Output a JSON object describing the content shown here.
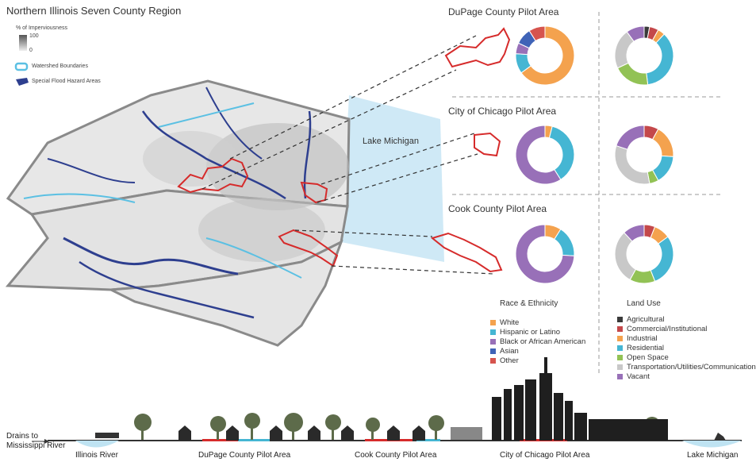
{
  "title": "Northern Illinois Seven County Region",
  "imperviousness": {
    "label": "% of Imperviousness",
    "max": "100",
    "min": "0"
  },
  "map_legend": {
    "watershed": "Watershed Boundaries",
    "flood": "Special Flood Hazard Areas"
  },
  "map_labels": {
    "lake": "Lake Michigan"
  },
  "pilots": [
    {
      "name": "DuPage County Pilot Area",
      "race": [
        0.65,
        0.11,
        0.06,
        0.09,
        0.09
      ],
      "landuse": [
        0.03,
        0.05,
        0.04,
        0.36,
        0.2,
        0.22,
        0.1
      ]
    },
    {
      "name": "City of Chicago Pilot Area",
      "race": [
        0.04,
        0.37,
        0.59,
        0.0,
        0.0
      ],
      "landuse": [
        0.0,
        0.08,
        0.18,
        0.16,
        0.05,
        0.33,
        0.2
      ]
    },
    {
      "name": "Cook County Pilot Area",
      "race": [
        0.09,
        0.17,
        0.74,
        0.0,
        0.0
      ],
      "landuse": [
        0.0,
        0.06,
        0.09,
        0.29,
        0.14,
        0.3,
        0.12
      ]
    }
  ],
  "race_legend": {
    "heading": "Race & Ethnicity",
    "items": [
      {
        "label": "White",
        "color": "#F4A24E"
      },
      {
        "label": "Hispanic or Latino",
        "color": "#45B6D3"
      },
      {
        "label": "Black or African American",
        "color": "#9870B8"
      },
      {
        "label": "Asian",
        "color": "#3F63B7"
      },
      {
        "label": "Other",
        "color": "#D6544E"
      }
    ]
  },
  "landuse_legend": {
    "heading": "Land Use",
    "items": [
      {
        "label": "Agricultural",
        "color": "#3A3A3A"
      },
      {
        "label": "Commercial/Institutional",
        "color": "#C4484A"
      },
      {
        "label": "Industrial",
        "color": "#F4A24E"
      },
      {
        "label": "Residential",
        "color": "#45B6D3"
      },
      {
        "label": "Open Space",
        "color": "#92C255"
      },
      {
        "label": "Transportation/Utilities/Communication",
        "color": "#C8C8C8"
      },
      {
        "label": "Vacant",
        "color": "#9870B8"
      }
    ]
  },
  "bottom": {
    "drains_line1": "Drains to",
    "drains_line2": "Mississippi River",
    "illinois_river": "Illinois River",
    "dupage": "DuPage County Pilot Area",
    "cook": "Cook County Pilot Area",
    "chicago": "City of Chicago Pilot Area",
    "lake": "Lake Michigan"
  }
}
